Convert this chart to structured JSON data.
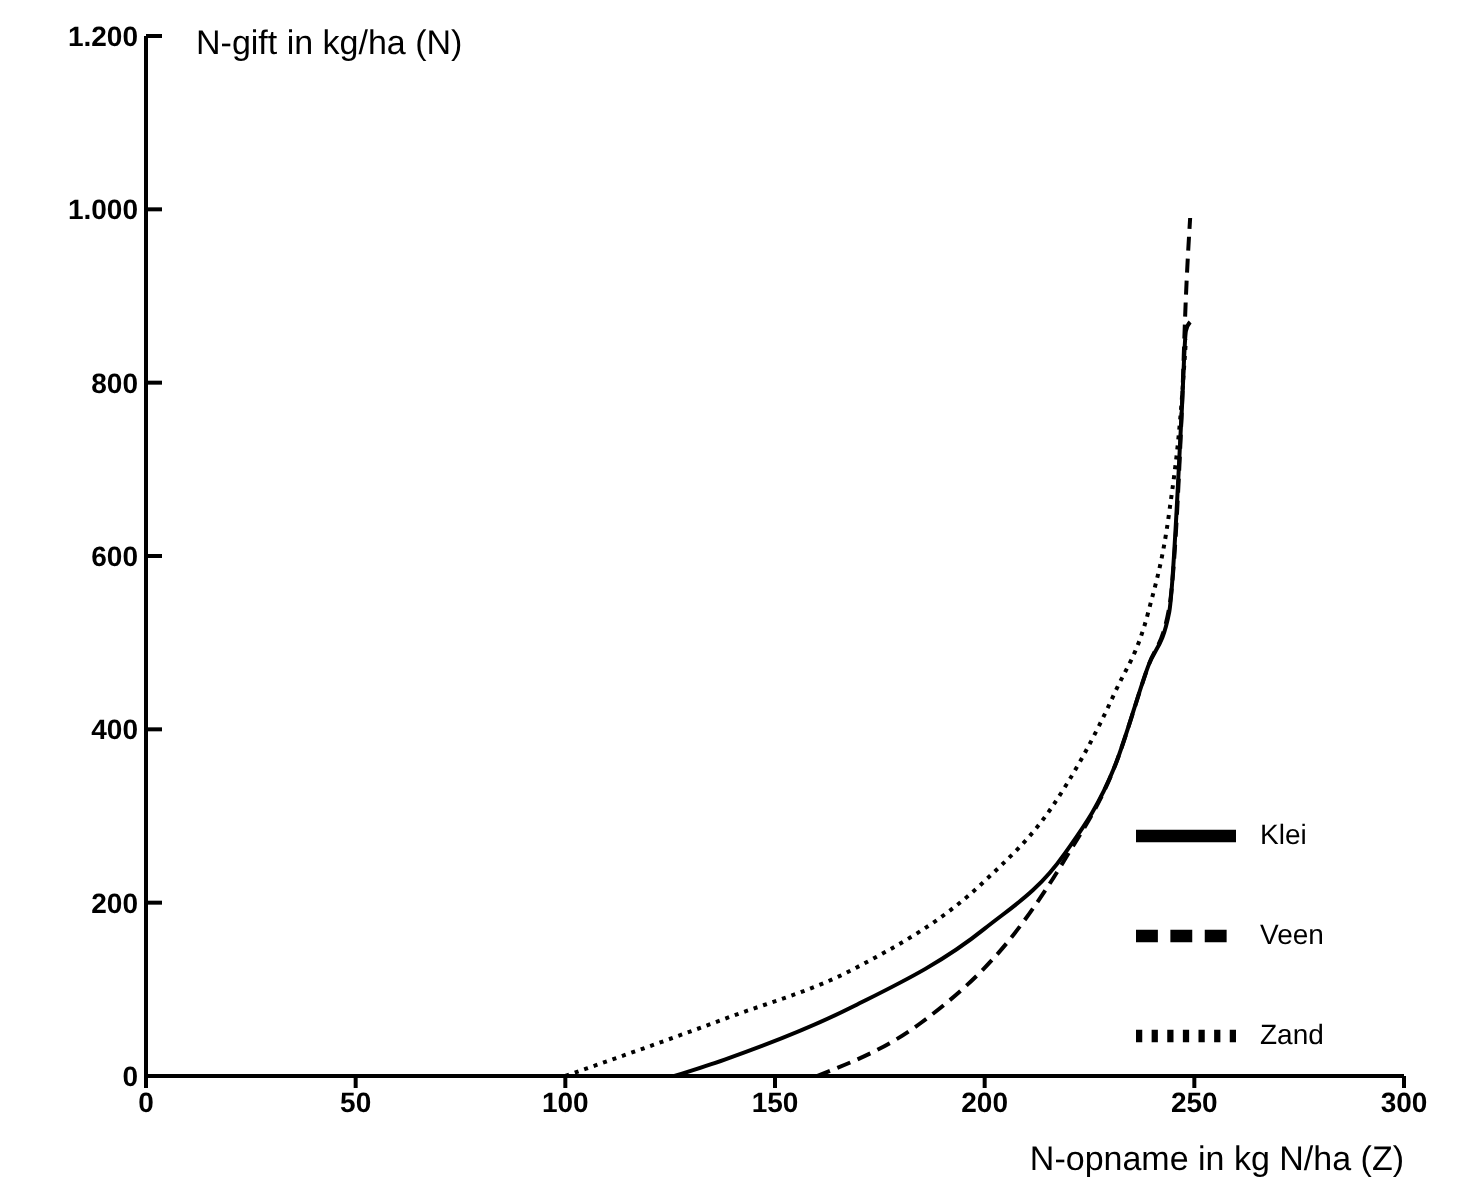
{
  "chart_data": {
    "type": "line",
    "xlabel": "N-opname in kg N/ha (Z)",
    "ylabel": "N-gift in kg/ha (N)",
    "xlim": [
      0,
      300
    ],
    "xticks": [
      0,
      50,
      100,
      150,
      200,
      250,
      300
    ],
    "ylim": [
      0,
      1200
    ],
    "yticks": [
      0,
      200,
      400,
      600,
      800,
      {
        "value": 1000,
        "label": "1.000"
      },
      {
        "value": 1200,
        "label": "1.200"
      }
    ],
    "grid": false,
    "legend": "bottom right",
    "marker": "none",
    "series": [
      {
        "name": "Klei",
        "color": "#000000",
        "line_style": "solid",
        "x": [
          126,
          138,
          169,
          200,
          219,
          231,
          239,
          244,
          247,
          248,
          249
        ],
        "values": [
          0,
          19,
          81,
          170,
          256,
          357,
          473,
          535,
          767,
          860,
          870
        ]
      },
      {
        "name": "Veen",
        "color": "#000000",
        "line_style": "dashed",
        "x": [
          160,
          185,
          208,
          219,
          231,
          239,
          244,
          247,
          248,
          249
        ],
        "values": [
          0,
          62,
          170,
          249,
          357,
          473,
          540,
          767,
          900,
          990
        ]
      },
      {
        "name": "Zand",
        "color": "#000000",
        "line_style": "dotted",
        "x": [
          100,
          138,
          169,
          200,
          216,
          231,
          239,
          244,
          247,
          248
        ],
        "values": [
          0,
          66,
          124,
          225,
          310,
          442,
          535,
          650,
          780,
          850
        ]
      }
    ]
  }
}
